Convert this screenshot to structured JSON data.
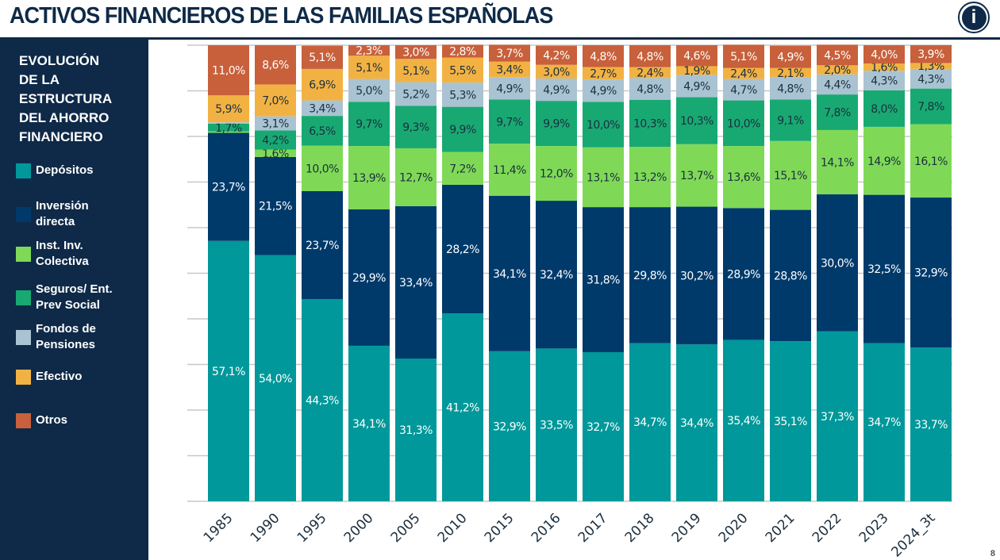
{
  "header": {
    "title": "ACTIVOS FINANCIEROS DE LAS FAMILIAS ESPAÑOLAS",
    "logo_text": "in",
    "page_number": "8"
  },
  "sidebar": {
    "title": "EVOLUCIÓN\nDE LA\nESTRUCTURA\nDEL AHORRO\nFINANCIERO"
  },
  "chart_data": {
    "type": "bar",
    "stacked": true,
    "ylim": [
      0,
      100
    ],
    "grid": true,
    "legend": "left",
    "categories": [
      "1985",
      "1990",
      "1995",
      "2000",
      "2005",
      "2010",
      "2015",
      "2016",
      "2017",
      "2018",
      "2019",
      "2020",
      "2021",
      "2022",
      "2023",
      "2024_3t"
    ],
    "series": [
      {
        "name": "Depósitos",
        "color": "#00989a",
        "label_color": "#ffffff",
        "values": [
          57.1,
          54.0,
          44.3,
          34.1,
          31.3,
          41.2,
          32.9,
          33.5,
          32.7,
          34.7,
          34.4,
          35.4,
          35.1,
          37.3,
          34.7,
          33.7
        ]
      },
      {
        "name": "Inversión\ndirecta",
        "color": "#003a6b",
        "label_color": "#ffffff",
        "values": [
          23.7,
          21.5,
          23.7,
          29.9,
          33.4,
          28.2,
          34.1,
          32.4,
          31.8,
          29.8,
          30.2,
          28.9,
          28.8,
          30.0,
          32.5,
          32.9
        ]
      },
      {
        "name": "Inst. Inv.\nColectiva",
        "color": "#7fd957",
        "label_color": "#1b2f3f",
        "values": [
          0.3,
          1.6,
          10.0,
          13.9,
          12.7,
          7.2,
          11.4,
          12.0,
          13.1,
          13.2,
          13.7,
          13.6,
          15.1,
          14.1,
          14.9,
          16.1
        ]
      },
      {
        "name": "Seguros/ Ent.\nPrev Social",
        "color": "#18a972",
        "label_color": "#1b2f3f",
        "values": [
          1.7,
          4.2,
          6.5,
          9.7,
          9.3,
          9.9,
          9.7,
          9.9,
          10.0,
          10.3,
          10.3,
          10.0,
          9.1,
          7.8,
          8.0,
          7.8
        ]
      },
      {
        "name": "Fondos de\nPensiones",
        "color": "#a9c3d2",
        "label_color": "#1b2f3f",
        "values": [
          0.3,
          3.1,
          3.4,
          5.0,
          5.2,
          5.3,
          4.9,
          4.9,
          4.9,
          4.8,
          4.9,
          4.7,
          4.8,
          4.4,
          4.3,
          4.3
        ]
      },
      {
        "name": "Efectivo",
        "color": "#f2b243",
        "label_color": "#1b2f3f",
        "values": [
          5.9,
          7.0,
          6.9,
          5.1,
          5.1,
          5.5,
          3.4,
          3.0,
          2.7,
          2.4,
          1.9,
          2.4,
          2.1,
          2.0,
          1.6,
          1.3
        ]
      },
      {
        "name": "Otros",
        "color": "#c8603b",
        "label_color": "#ffffff",
        "values": [
          11.0,
          8.6,
          5.1,
          2.3,
          3.0,
          2.8,
          3.7,
          4.2,
          4.8,
          4.8,
          4.6,
          5.1,
          4.9,
          4.5,
          4.0,
          3.9
        ]
      }
    ]
  }
}
